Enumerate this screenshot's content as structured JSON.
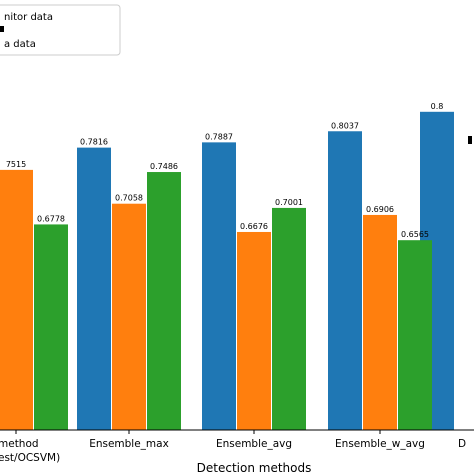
{
  "chart_data": {
    "type": "bar",
    "xlabel": "Detection methods",
    "ylabel": "",
    "ylim": [
      0.4,
      0.95
    ],
    "grid": false,
    "legend_position": "top-left",
    "categories": [
      "method\nest/OCSVM)",
      "Ensemble_max",
      "Ensemble_avg",
      "Ensemble_w_avg",
      "D"
    ],
    "series": [
      {
        "name": "nitor data",
        "color": "#1f77b4",
        "values": [
          null,
          0.7816,
          0.7887,
          0.8037,
          0.83
        ]
      },
      {
        "name": "",
        "color": "#ff7f0e",
        "values": [
          0.7515,
          0.7058,
          0.6676,
          0.6906,
          null
        ]
      },
      {
        "name": "a data",
        "color": "#2ca02c",
        "values": [
          0.6778,
          0.7486,
          0.7001,
          0.6565,
          null
        ]
      }
    ],
    "data_labels": [
      [
        "",
        "7515",
        "0.6778"
      ],
      [
        "0.7816",
        "0.7058",
        "0.7486"
      ],
      [
        "0.7887",
        "0.6676",
        "0.7001"
      ],
      [
        "0.8037",
        "0.6906",
        "0.6565"
      ],
      [
        "0.8",
        "",
        ""
      ]
    ],
    "category_labels": {
      "c0_line1": "method",
      "c0_line2": "est/OCSVM)",
      "c1": "Ensemble_max",
      "c2": "Ensemble_avg",
      "c3": "Ensemble_w_avg",
      "c4": "D"
    }
  }
}
